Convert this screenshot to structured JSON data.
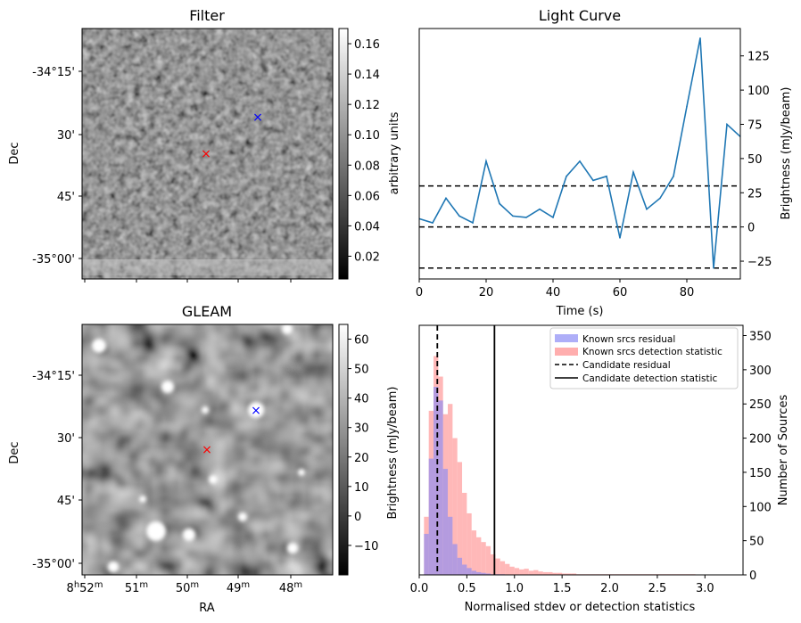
{
  "colors": {
    "curve": "#1f77b4",
    "known_residual": "#8c8cf5",
    "known_detection": "#ff9a9a",
    "blue_marker": "#0000ff",
    "red_marker": "#ff0000"
  },
  "chart_data": [
    {
      "type": "heatmap",
      "title": "Filter",
      "xlabel": "",
      "ylabel": "Dec",
      "yticks": [
        "-34°15'",
        "30'",
        "45'",
        "-35°00'"
      ],
      "colorbar": {
        "label": "arbitrary units",
        "range": [
          0.005,
          0.17
        ],
        "ticks": [
          "0.02",
          "0.04",
          "0.06",
          "0.08",
          "0.10",
          "0.12",
          "0.14",
          "0.16"
        ],
        "tick_values": [
          0.02,
          0.04,
          0.06,
          0.08,
          0.1,
          0.12,
          0.14,
          0.16
        ]
      },
      "markers": [
        {
          "name": "blue",
          "symbol": "×"
        },
        {
          "name": "red",
          "symbol": "×"
        }
      ]
    },
    {
      "type": "line",
      "title": "Light Curve",
      "xlabel": "Time (s)",
      "ylabel": "Brightness (mJy/beam)",
      "xlim": [
        0,
        96
      ],
      "ylim": [
        -38,
        145
      ],
      "xticks": [
        0,
        20,
        40,
        60,
        80
      ],
      "yticks": [
        -25,
        0,
        25,
        50,
        75,
        100,
        125
      ],
      "x": [
        0,
        4,
        8,
        12,
        16,
        20,
        24,
        28,
        32,
        36,
        40,
        44,
        48,
        52,
        56,
        60,
        64,
        68,
        72,
        76,
        80,
        84,
        88,
        92,
        96
      ],
      "y": [
        6,
        3,
        21,
        8,
        3,
        48,
        17,
        8,
        7,
        13,
        7,
        37,
        48,
        34,
        37,
        -8,
        40,
        13,
        21,
        37,
        88,
        138,
        -30,
        75,
        66
      ],
      "hlines": [
        30,
        0,
        -30
      ]
    },
    {
      "type": "heatmap",
      "title": "GLEAM",
      "xlabel": "RA",
      "ylabel": "Dec",
      "xticks": [
        "8h52m",
        "51m",
        "50m",
        "49m",
        "48m"
      ],
      "yticks": [
        "-34°15'",
        "30'",
        "45'",
        "-35°00'"
      ],
      "colorbar": {
        "label": "Brightness (mJy/beam)",
        "range": [
          -20,
          65
        ],
        "ticks": [
          "−10",
          "0",
          "10",
          "20",
          "30",
          "40",
          "50",
          "60"
        ],
        "tick_values": [
          -10,
          0,
          10,
          20,
          30,
          40,
          50,
          60
        ]
      },
      "markers": [
        {
          "name": "blue",
          "symbol": "×"
        },
        {
          "name": "red",
          "symbol": "×"
        }
      ]
    },
    {
      "type": "bar",
      "title": "",
      "xlabel": "Normalised stdev or detection statistics",
      "ylabel": "Number of Sources",
      "xlim": [
        0,
        3.4
      ],
      "ylim": [
        0,
        365
      ],
      "xticks": [
        "0.0",
        "0.5",
        "1.0",
        "1.5",
        "2.0",
        "2.5",
        "3.0"
      ],
      "yticks": [
        0,
        50,
        100,
        150,
        200,
        250,
        300,
        350
      ],
      "bin_width": 0.05,
      "series": [
        {
          "name": "Known srcs residual",
          "bin_start": 0.05,
          "values": [
            60,
            170,
            275,
            255,
            155,
            85,
            45,
            25,
            15,
            10,
            6,
            4,
            3,
            2,
            1,
            1,
            1
          ]
        },
        {
          "name": "Known srcs detection statistic",
          "bin_start": 0.05,
          "values": [
            85,
            240,
            320,
            290,
            235,
            250,
            200,
            165,
            120,
            90,
            65,
            55,
            48,
            42,
            30,
            24,
            20,
            16,
            12,
            10,
            8,
            9,
            6,
            7,
            5,
            4,
            4,
            3,
            3,
            2,
            2,
            2,
            1,
            1,
            1,
            1,
            1,
            1,
            1,
            1,
            1,
            1,
            1,
            1,
            1,
            1,
            1,
            1,
            1,
            1,
            1,
            1,
            1,
            1,
            1,
            1,
            1
          ]
        }
      ],
      "vlines": [
        {
          "name": "Candidate residual",
          "x": 0.19,
          "style": "dashed"
        },
        {
          "name": "Candidate detection statistic",
          "x": 0.79,
          "style": "solid"
        }
      ],
      "legend": {
        "position": "top-right",
        "entries": [
          "Known srcs residual",
          "Known srcs detection statistic",
          "Candidate residual",
          "Candidate detection statistic"
        ]
      }
    }
  ]
}
